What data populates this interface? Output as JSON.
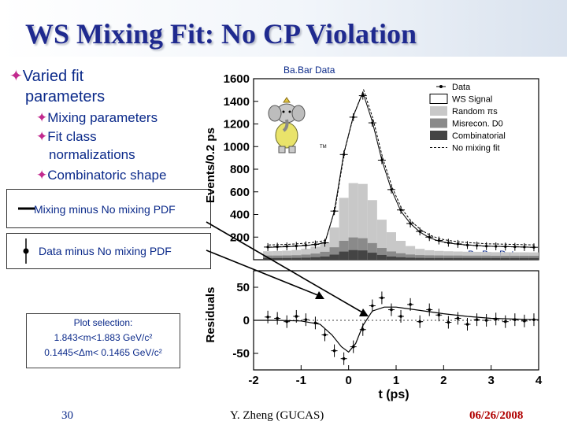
{
  "slide": {
    "title": "WS Mixing Fit: No CP Violation",
    "bullets": [
      {
        "text": "Varied fit"
      },
      {
        "text": "parameters"
      },
      {
        "text": "Mixing parameters"
      },
      {
        "text": "Fit class"
      },
      {
        "text": "normalizations"
      },
      {
        "text": "Combinatoric shape"
      }
    ],
    "callout_mixing": "Mixing minus No mixing PDF",
    "callout_data": "Data minus No mixing PDF",
    "selection": {
      "heading": "Plot selection:",
      "line1": "1.843<m<1.883 GeV/c²",
      "line2": "0.1445<Δm< 0.1465 GeV/c²"
    },
    "footer": {
      "page": "30",
      "author": "Y. Zheng (GUCAS)",
      "date": "06/26/2008"
    },
    "colors": {
      "title": "#1f2a8f",
      "text": "#0b2a8a",
      "bullet": "#c22a8e",
      "footer_date": "#b00000"
    },
    "bullet_icon": "four-point-star"
  },
  "chart_data": [
    {
      "type": "line",
      "label_top": "Ba.Bar Data",
      "label_bottom": "Ba.Bar Data",
      "ylabel": "Events/0.2 ps",
      "ylim": [
        0,
        1600
      ],
      "y_ticks": [
        200,
        400,
        600,
        800,
        1000,
        1200,
        1400,
        1600
      ],
      "xlim": [
        -2,
        4
      ],
      "legend": [
        "Data",
        "WS Signal",
        "Random πs",
        "Misrecon. D0",
        "Combinatorial",
        "No mixing fit"
      ],
      "legend_position": "top-right",
      "x": [
        -1.7,
        -1.5,
        -1.3,
        -1.1,
        -0.9,
        -0.7,
        -0.5,
        -0.3,
        -0.1,
        0.1,
        0.3,
        0.5,
        0.7,
        0.9,
        1.1,
        1.3,
        1.5,
        1.7,
        1.9,
        2.1,
        2.3,
        2.5,
        2.7,
        2.9,
        3.1,
        3.3,
        3.5,
        3.7,
        3.9
      ],
      "series": [
        {
          "name": "Data",
          "values": [
            112,
            115,
            118,
            122,
            128,
            135,
            150,
            430,
            930,
            1260,
            1450,
            1210,
            880,
            620,
            440,
            320,
            250,
            200,
            170,
            150,
            140,
            130,
            125,
            120,
            118,
            116,
            114,
            112,
            110
          ]
        },
        {
          "name": "No mixing fit",
          "values": [
            110,
            112,
            115,
            120,
            126,
            135,
            150,
            430,
            940,
            1270,
            1480,
            1220,
            880,
            620,
            430,
            320,
            245,
            195,
            165,
            148,
            138,
            130,
            125,
            120,
            118,
            116,
            114,
            112,
            110
          ]
        },
        {
          "name": "Random πs",
          "values": [
            38,
            40,
            42,
            46,
            52,
            62,
            80,
            175,
            380,
            480,
            480,
            380,
            250,
            170,
            110,
            75,
            55,
            45,
            40,
            38,
            36,
            35,
            34,
            33,
            32,
            32,
            31,
            31,
            30
          ]
        },
        {
          "name": "Misrecon. D0",
          "values": [
            22,
            22,
            23,
            24,
            27,
            32,
            42,
            65,
            95,
            112,
            108,
            85,
            62,
            45,
            35,
            28,
            25,
            24,
            23,
            22,
            22,
            21,
            21,
            21,
            20,
            20,
            20,
            20,
            20
          ]
        },
        {
          "name": "Combinatorial",
          "values": [
            15,
            15,
            15,
            16,
            18,
            22,
            28,
            45,
            72,
            85,
            82,
            62,
            42,
            28,
            22,
            18,
            16,
            15,
            15,
            15,
            15,
            15,
            15,
            15,
            15,
            15,
            15,
            15,
            15
          ]
        }
      ]
    },
    {
      "type": "scatter",
      "ylabel": "Residuals",
      "xlabel": "t (ps)",
      "ylim": [
        -75,
        75
      ],
      "y_ticks": [
        50,
        0,
        -50
      ],
      "x_ticks": [
        -2,
        -1,
        0,
        1,
        2,
        3,
        4
      ],
      "xlim": [
        -2,
        4
      ],
      "series": [
        {
          "name": "Data",
          "x": [
            -1.7,
            -1.5,
            -1.3,
            -1.1,
            -0.9,
            -0.7,
            -0.5,
            -0.3,
            -0.1,
            0.1,
            0.3,
            0.5,
            0.7,
            0.9,
            1.1,
            1.3,
            1.5,
            1.7,
            1.9,
            2.1,
            2.3,
            2.5,
            2.7,
            2.9,
            3.1,
            3.3,
            3.5,
            3.7,
            3.9
          ],
          "values": [
            5,
            3,
            -2,
            6,
            1,
            -4,
            -22,
            -46,
            -58,
            -40,
            -14,
            22,
            34,
            16,
            6,
            24,
            -2,
            16,
            8,
            -3,
            3,
            -6,
            1,
            0,
            2,
            -2,
            1,
            -1,
            1
          ]
        },
        {
          "name": "Mixing minus No mixing PDF",
          "x": [
            -2,
            -1.5,
            -1,
            -0.6,
            -0.35,
            -0.15,
            0,
            0.15,
            0.3,
            0.5,
            0.75,
            1,
            1.5,
            2,
            2.5,
            3,
            4
          ],
          "values": [
            0,
            0,
            -1,
            -6,
            -22,
            -40,
            -48,
            -35,
            -8,
            14,
            20,
            20,
            15,
            10,
            6,
            3,
            1
          ]
        }
      ]
    }
  ]
}
